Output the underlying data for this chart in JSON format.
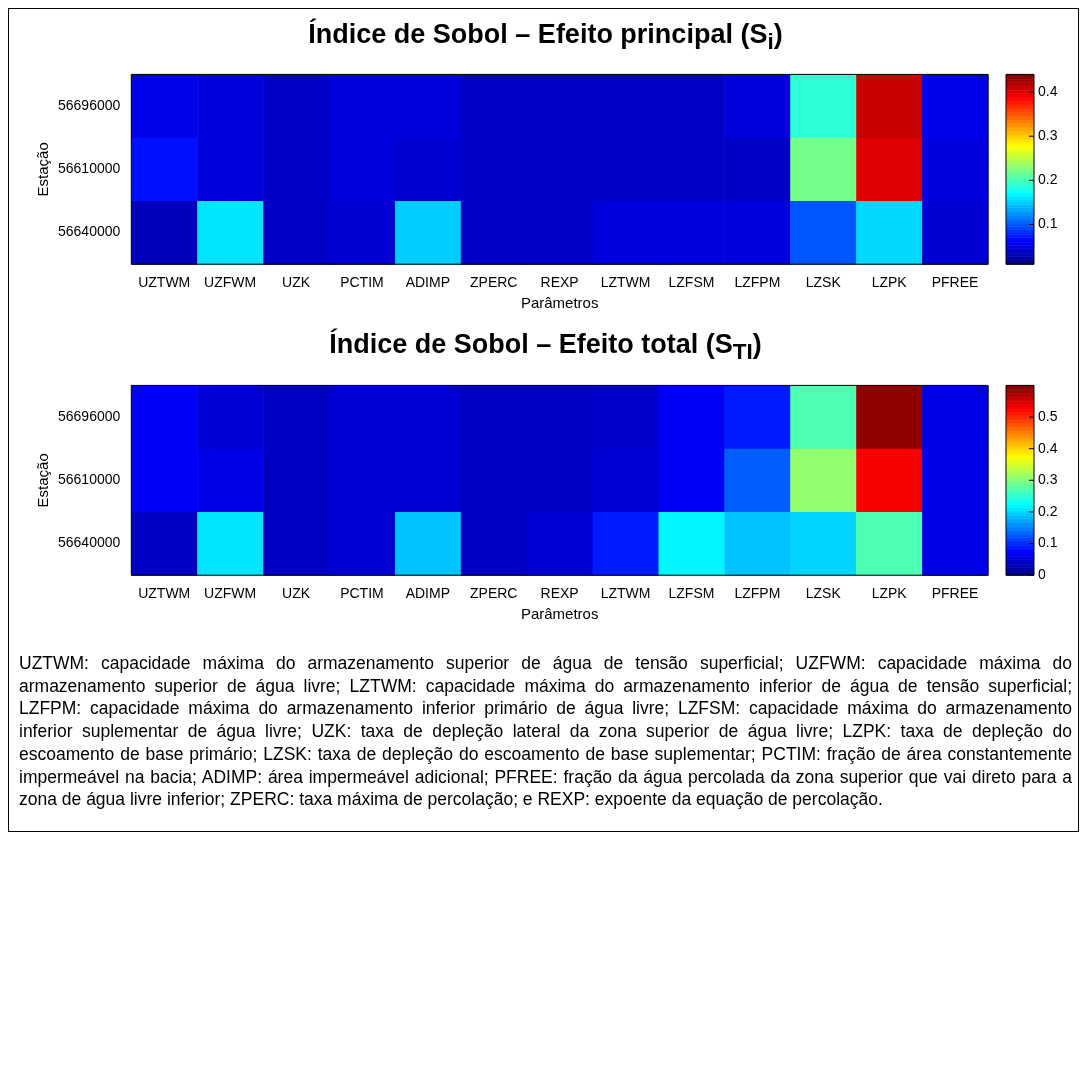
{
  "chart_data": [
    {
      "type": "heatmap",
      "title": "Índice de Sobol – Efeito principal (S$_{i}$)",
      "xlabel": "Parâmetros",
      "ylabel": "Estação",
      "categories": [
        "UZTWM",
        "UZFWM",
        "UZK",
        "PCTIM",
        "ADIMP",
        "ZPERC",
        "REXP",
        "LZTWM",
        "LZFSM",
        "LZFPM",
        "LZSK",
        "LZPK",
        "PFREE"
      ],
      "y_categories": [
        "56696000",
        "56610000",
        "56640000"
      ],
      "cells": [
        [
          0.055,
          0.05,
          0.04,
          0.05,
          0.05,
          0.04,
          0.04,
          0.04,
          0.04,
          0.05,
          0.19,
          0.41,
          0.055
        ],
        [
          0.07,
          0.05,
          0.04,
          0.05,
          0.045,
          0.04,
          0.04,
          0.04,
          0.04,
          0.04,
          0.22,
          0.4,
          0.05
        ],
        [
          0.035,
          0.16,
          0.04,
          0.045,
          0.15,
          0.04,
          0.04,
          0.05,
          0.05,
          0.05,
          0.1,
          0.155,
          0.045
        ]
      ],
      "clim": [
        0.01,
        0.44
      ],
      "cticks": [
        0.1,
        0.2,
        0.3,
        0.4
      ]
    },
    {
      "type": "heatmap",
      "title": "Índice de Sobol – Efeito total (S$_{TI}$)",
      "xlabel": "Parâmetros",
      "ylabel": "Estação",
      "categories": [
        "UZTWM",
        "UZFWM",
        "UZK",
        "PCTIM",
        "ADIMP",
        "ZPERC",
        "REXP",
        "LZTWM",
        "LZFSM",
        "LZFPM",
        "LZSK",
        "LZPK",
        "PFREE"
      ],
      "y_categories": [
        "56696000",
        "56610000",
        "56640000"
      ],
      "cells": [
        [
          0.07,
          0.05,
          0.04,
          0.05,
          0.05,
          0.04,
          0.04,
          0.045,
          0.07,
          0.09,
          0.27,
          0.59,
          0.06
        ],
        [
          0.07,
          0.06,
          0.04,
          0.05,
          0.05,
          0.04,
          0.04,
          0.05,
          0.07,
          0.13,
          0.31,
          0.53,
          0.06
        ],
        [
          0.04,
          0.21,
          0.04,
          0.05,
          0.19,
          0.04,
          0.05,
          0.09,
          0.22,
          0.19,
          0.2,
          0.27,
          0.06
        ]
      ],
      "clim": [
        0,
        0.6
      ],
      "cticks": [
        0,
        0.1,
        0.2,
        0.3,
        0.4,
        0.5
      ],
      "annotations": [
        "UZTWM: capacidade máxima do armazenamento superior de água de tensão superficial; UZFWM: capacidade máxima do armazenamento superior de água livre; LZTWM: capacidade máxima do armazenamento inferior de água de tensão superficial; LZFPM: capacidade máxima do armazenamento inferior primário de água livre; LZFSM: capacidade máxima do armazenamento inferior suplementar de água livre; UZK: taxa de depleção lateral da zona superior de água livre; LZPK: taxa de depleção do escoamento de base primário; LZSK: taxa de depleção do escoamento de base suplementar; PCTIM: fração de área constantemente impermeável na bacia; ADIMP: área impermeável adicional; PFREE: fração da água percolada da zona superior que vai direto para a zona de água livre inferior; ZPERC: taxa máxima de percolação; e REXP: expoente da equação de percolação."
      ]
    }
  ]
}
